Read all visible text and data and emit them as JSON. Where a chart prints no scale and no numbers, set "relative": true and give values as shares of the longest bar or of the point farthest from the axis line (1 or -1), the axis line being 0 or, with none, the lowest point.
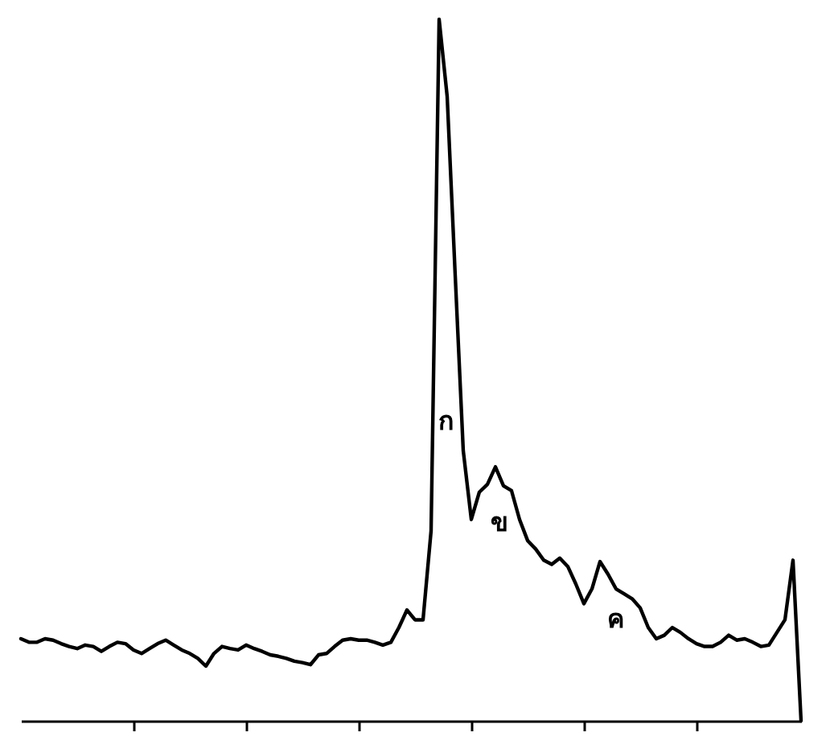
{
  "chart_data": {
    "type": "line",
    "relative": true,
    "tick_labels": false,
    "marker": "none",
    "line_style": "solid",
    "categories": [
      null,
      null,
      null,
      null,
      null,
      null,
      null,
      null,
      null,
      null,
      null,
      null,
      null,
      null,
      null,
      null,
      null,
      null,
      null,
      null,
      null,
      null,
      null,
      null,
      null,
      null,
      null,
      null,
      null,
      null,
      null,
      null,
      null,
      null,
      null,
      null,
      null,
      null,
      null,
      null,
      null,
      null,
      null,
      null,
      null,
      null,
      null,
      null,
      null,
      null,
      null,
      null,
      null,
      null,
      null,
      null,
      null,
      null,
      null,
      null,
      null,
      null,
      null,
      null,
      null,
      null,
      null,
      null,
      null,
      null,
      null,
      null,
      null,
      null,
      null,
      null,
      null,
      null,
      null,
      null,
      null,
      null,
      null,
      null,
      null,
      null,
      null,
      null,
      null,
      null,
      null,
      null,
      null,
      null,
      null,
      null,
      null,
      null
    ],
    "series": [
      {
        "color": "#000000",
        "values": [
          0.117,
          0.112,
          0.112,
          0.117,
          0.115,
          0.11,
          0.106,
          0.103,
          0.108,
          0.106,
          0.099,
          0.106,
          0.112,
          0.11,
          0.101,
          0.096,
          0.103,
          0.11,
          0.115,
          0.108,
          0.101,
          0.096,
          0.089,
          0.078,
          0.096,
          0.106,
          0.103,
          0.101,
          0.108,
          0.103,
          0.099,
          0.094,
          0.092,
          0.089,
          0.085,
          0.083,
          0.08,
          0.094,
          0.096,
          0.106,
          0.115,
          0.117,
          0.115,
          0.115,
          0.112,
          0.108,
          0.112,
          0.133,
          0.158,
          0.144,
          0.144,
          0.271,
          1,
          0.89,
          0.635,
          0.385,
          0.287,
          0.326,
          0.337,
          0.362,
          0.335,
          0.328,
          0.287,
          0.257,
          0.245,
          0.229,
          0.223,
          0.232,
          0.22,
          0.195,
          0.167,
          0.188,
          0.227,
          0.209,
          0.188,
          0.181,
          0.174,
          0.161,
          0.133,
          0.117,
          0.122,
          0.133,
          0.126,
          0.117,
          0.11,
          0.106,
          0.106,
          0.112,
          0.122,
          0.115,
          0.117,
          0.112,
          0.106,
          0.108,
          0.126,
          0.144,
          0.229,
          0
        ]
      }
    ],
    "annotations": [
      "ก",
      "ข",
      "ค"
    ]
  }
}
